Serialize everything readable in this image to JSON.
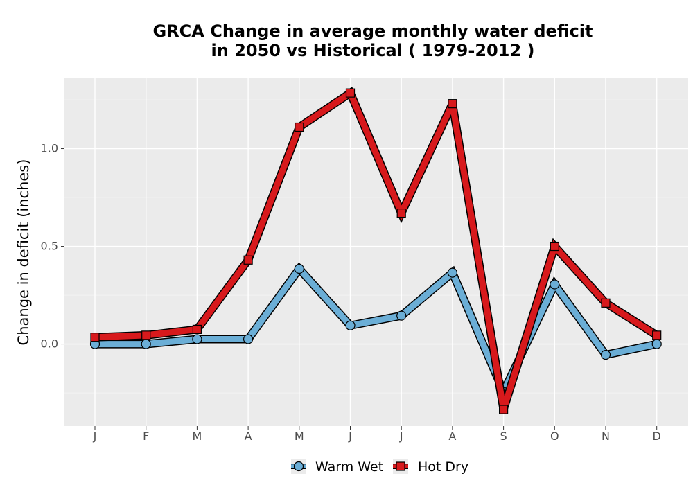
{
  "chart_data": {
    "type": "line",
    "title_line1": "GRCA  Change in average monthly water deficit",
    "title_line2": "in 2050 vs Historical ( 1979-2012 )",
    "ylabel": "Change in deficit (inches)",
    "xlabel": "",
    "categories": [
      "J",
      "F",
      "M",
      "A",
      "M",
      "J",
      "J",
      "A",
      "S",
      "O",
      "N",
      "D"
    ],
    "ylim": [
      -0.42,
      1.36
    ],
    "yticks": [
      0.0,
      0.5,
      1.0
    ],
    "ytick_labels": [
      "0.0",
      "0.5",
      "1.0"
    ],
    "grid": true,
    "legend_position": "bottom",
    "series": [
      {
        "name": "Warm Wet",
        "color": "#6baed6",
        "marker": "circle",
        "values": [
          0.0,
          0.0,
          0.025,
          0.025,
          0.385,
          0.095,
          0.145,
          0.365,
          -0.245,
          0.305,
          -0.055,
          0.0
        ]
      },
      {
        "name": "Hot Dry",
        "color": "#d7191c",
        "marker": "square",
        "values": [
          0.035,
          0.045,
          0.075,
          0.43,
          1.11,
          1.285,
          0.67,
          1.23,
          -0.335,
          0.5,
          0.21,
          0.045
        ]
      }
    ]
  }
}
